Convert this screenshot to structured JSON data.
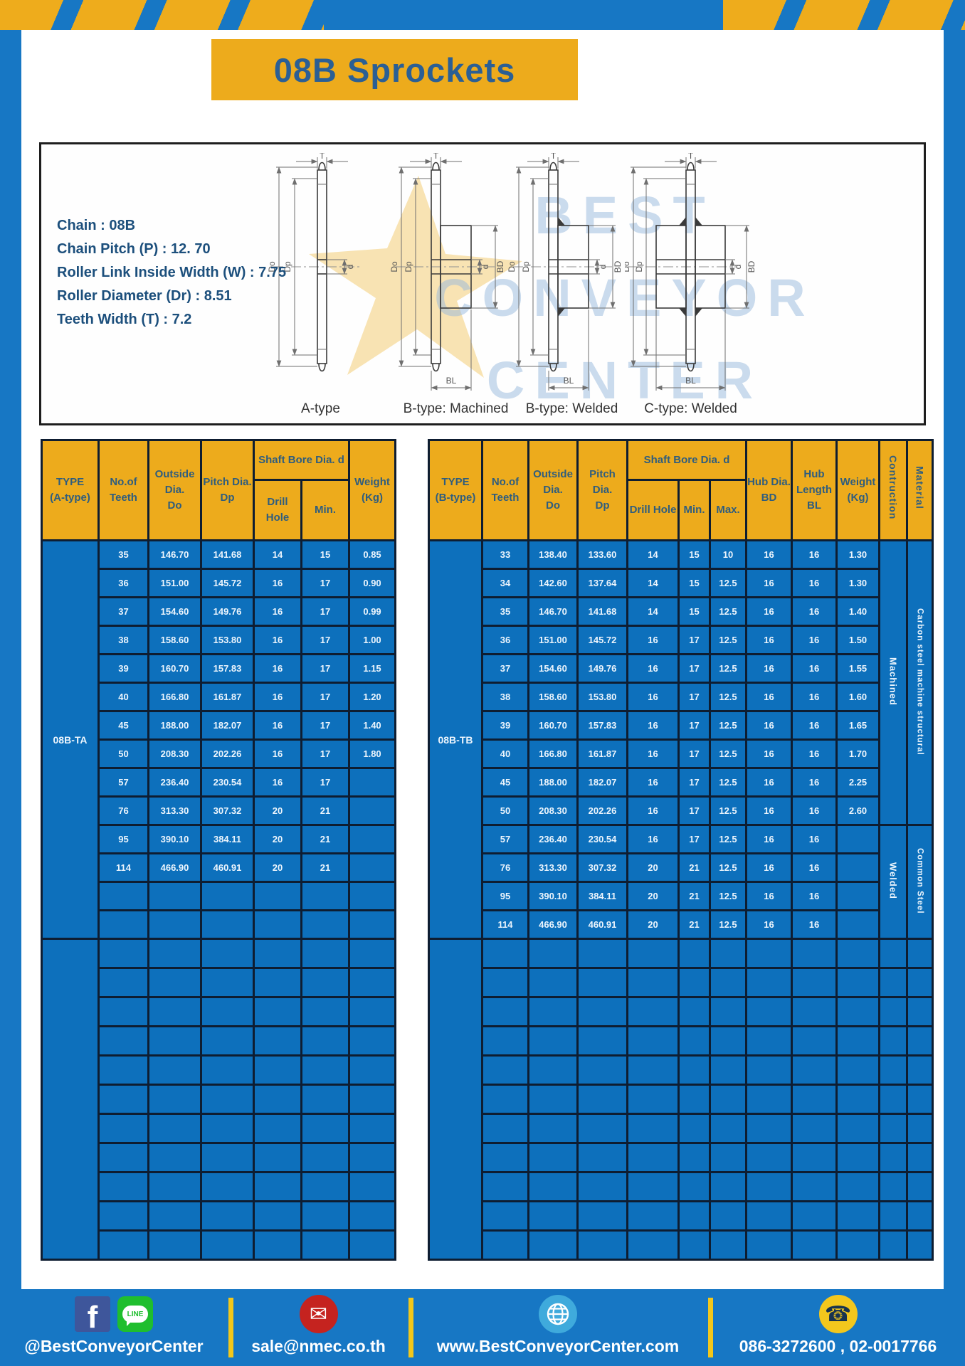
{
  "page": {
    "title": "08B Sprockets"
  },
  "specs": {
    "lines": [
      "Chain : 08B",
      "Chain Pitch (P) : 12. 70",
      "Roller Link Inside Width (W) : 7.75",
      "Roller Diameter (Dr) : 8.51",
      "Teeth Width (T) : 7.2"
    ]
  },
  "watermark": {
    "lines": [
      "BEST",
      "CONVEYOR",
      "CENTER"
    ]
  },
  "diagrams": {
    "captions": [
      "A-type",
      "B-type: Machined",
      "B-type: Welded",
      "C-type: Welded"
    ],
    "labels": {
      "T": "T",
      "Do": "Do",
      "Dp": "Dp",
      "d": "d",
      "BD": "BD",
      "BL": "BL"
    }
  },
  "table_a": {
    "header": {
      "type": [
        "TYPE",
        "(A-type)"
      ],
      "teeth": [
        "No.of",
        "Teeth"
      ],
      "outside": [
        "Outside",
        "Dia.",
        "Do"
      ],
      "pitch": [
        "Pitch Dia.",
        "Dp"
      ],
      "shaft_group": "Shaft Bore Dia. d",
      "drill": "Drill Hole",
      "min": "Min.",
      "weight": [
        "Weight",
        "(Kg)"
      ]
    },
    "type_label": "08B-TA",
    "rows": [
      [
        "35",
        "146.70",
        "141.68",
        "14",
        "15",
        "0.85"
      ],
      [
        "36",
        "151.00",
        "145.72",
        "16",
        "17",
        "0.90"
      ],
      [
        "37",
        "154.60",
        "149.76",
        "16",
        "17",
        "0.99"
      ],
      [
        "38",
        "158.60",
        "153.80",
        "16",
        "17",
        "1.00"
      ],
      [
        "39",
        "160.70",
        "157.83",
        "16",
        "17",
        "1.15"
      ],
      [
        "40",
        "166.80",
        "161.87",
        "16",
        "17",
        "1.20"
      ],
      [
        "45",
        "188.00",
        "182.07",
        "16",
        "17",
        "1.40"
      ],
      [
        "50",
        "208.30",
        "202.26",
        "16",
        "17",
        "1.80"
      ],
      [
        "57",
        "236.40",
        "230.54",
        "16",
        "17",
        ""
      ],
      [
        "76",
        "313.30",
        "307.32",
        "20",
        "21",
        ""
      ],
      [
        "95",
        "390.10",
        "384.11",
        "20",
        "21",
        ""
      ],
      [
        "114",
        "466.90",
        "460.91",
        "20",
        "21",
        ""
      ]
    ],
    "empty_rows_group1": 2,
    "empty_rows_group2": 11
  },
  "table_b": {
    "header": {
      "type": [
        "TYPE",
        "(B-type)"
      ],
      "teeth": [
        "No.of",
        "Teeth"
      ],
      "outside": [
        "Outside",
        "Dia.",
        "Do"
      ],
      "pitch": [
        "Pitch Dia.",
        "Dp"
      ],
      "shaft_group": "Shaft Bore Dia. d",
      "drill": "Drill Hole",
      "min": "Min.",
      "max": "Max.",
      "hub_dia": [
        "Hub Dia.",
        "BD"
      ],
      "hub_len": [
        "Hub",
        "Length",
        "BL"
      ],
      "weight": [
        "Weight",
        "(Kg)"
      ],
      "construction": "Contruction",
      "material": "Material"
    },
    "type_label": "08B-TB",
    "rows": [
      [
        "33",
        "138.40",
        "133.60",
        "14",
        "15",
        "10",
        "16",
        "16",
        "1.30"
      ],
      [
        "34",
        "142.60",
        "137.64",
        "14",
        "15",
        "12.5",
        "16",
        "16",
        "1.30"
      ],
      [
        "35",
        "146.70",
        "141.68",
        "14",
        "15",
        "12.5",
        "16",
        "16",
        "1.40"
      ],
      [
        "36",
        "151.00",
        "145.72",
        "16",
        "17",
        "12.5",
        "16",
        "16",
        "1.50"
      ],
      [
        "37",
        "154.60",
        "149.76",
        "16",
        "17",
        "12.5",
        "16",
        "16",
        "1.55"
      ],
      [
        "38",
        "158.60",
        "153.80",
        "16",
        "17",
        "12.5",
        "16",
        "16",
        "1.60"
      ],
      [
        "39",
        "160.70",
        "157.83",
        "16",
        "17",
        "12.5",
        "16",
        "16",
        "1.65"
      ],
      [
        "40",
        "166.80",
        "161.87",
        "16",
        "17",
        "12.5",
        "16",
        "16",
        "1.70"
      ],
      [
        "45",
        "188.00",
        "182.07",
        "16",
        "17",
        "12.5",
        "16",
        "16",
        "2.25"
      ],
      [
        "50",
        "208.30",
        "202.26",
        "16",
        "17",
        "12.5",
        "16",
        "16",
        "2.60"
      ],
      [
        "57",
        "236.40",
        "230.54",
        "16",
        "17",
        "12.5",
        "16",
        "16",
        ""
      ],
      [
        "76",
        "313.30",
        "307.32",
        "20",
        "21",
        "12.5",
        "16",
        "16",
        ""
      ],
      [
        "95",
        "390.10",
        "384.11",
        "20",
        "21",
        "12.5",
        "16",
        "16",
        ""
      ],
      [
        "114",
        "466.90",
        "460.91",
        "20",
        "21",
        "12.5",
        "16",
        "16",
        ""
      ]
    ],
    "construction": [
      {
        "label": "Machined",
        "span": 10
      },
      {
        "label": "Welded",
        "span": 4
      }
    ],
    "material": [
      {
        "label": "Carbon steel  machine structural",
        "span": 10
      },
      {
        "label": "Common  Steel",
        "span": 4
      }
    ],
    "empty_rows_group2": 11
  },
  "footer": {
    "facebook_glyph": "f",
    "line_label": "LINE",
    "social_handle": "@BestConveyorCenter",
    "email": "sale@nmec.co.th",
    "website": "www.BestConveyorCenter.com",
    "phones": "086-3272600 , 02-0017766"
  }
}
